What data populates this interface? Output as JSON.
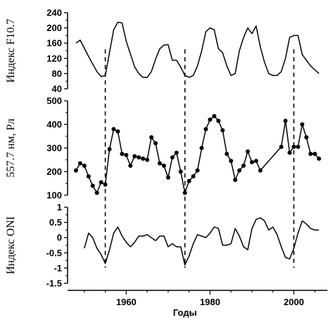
{
  "chart_data": [
    {
      "type": "line",
      "id": "f107",
      "ylabel": "Индекс F10.7",
      "ylim": [
        40,
        240
      ],
      "yticks": [
        40,
        80,
        120,
        160,
        200,
        240
      ],
      "series": [
        {
          "x": [
            1948,
            1949,
            1951,
            1953,
            1954,
            1955,
            1956,
            1957,
            1958,
            1959,
            1960,
            1962,
            1963,
            1964,
            1965,
            1966,
            1967,
            1968,
            1969,
            1970,
            1971,
            1972,
            1973,
            1974,
            1975,
            1976,
            1977,
            1978,
            1979,
            1980,
            1981,
            1982,
            1983,
            1984,
            1985,
            1986,
            1987,
            1988,
            1989,
            1990,
            1991,
            1992,
            1993,
            1994,
            1995,
            1996,
            1997,
            1998,
            1999,
            2000,
            2001,
            2002,
            2003,
            2004,
            2005,
            2006
          ],
          "y": [
            160,
            168,
            125,
            85,
            72,
            75,
            135,
            195,
            215,
            213,
            165,
            98,
            80,
            70,
            70,
            85,
            118,
            145,
            155,
            156,
            115,
            115,
            97,
            75,
            70,
            75,
            100,
            140,
            190,
            200,
            195,
            145,
            135,
            100,
            75,
            80,
            140,
            175,
            200,
            185,
            205,
            150,
            110,
            80,
            75,
            75,
            85,
            120,
            175,
            180,
            180,
            130,
            115,
            100,
            90,
            80
          ]
        }
      ]
    },
    {
      "type": "line",
      "id": "emission",
      "ylabel": "557.7 нм, Рл",
      "ylim": [
        100,
        500
      ],
      "yticks": [
        100,
        200,
        300,
        400,
        500
      ],
      "markers": true,
      "series": [
        {
          "x": [
            1948,
            1949,
            1950,
            1951,
            1952,
            1953,
            1954,
            1955,
            1956,
            1957,
            1958,
            1959,
            1960,
            1961,
            1962,
            1963,
            1964,
            1965,
            1966,
            1967,
            1968,
            1969,
            1970,
            1971,
            1972,
            1973,
            1974,
            1975,
            1976,
            1977,
            1978,
            1979,
            1980,
            1981,
            1982,
            1983,
            1984,
            1985,
            1986,
            1987,
            1988,
            1989,
            1990,
            1991,
            1992,
            1997,
            1998,
            1999,
            2000,
            2001,
            2002,
            2003,
            2004,
            2005,
            2006
          ],
          "y": [
            205,
            235,
            225,
            180,
            140,
            110,
            155,
            145,
            295,
            380,
            370,
            275,
            270,
            225,
            265,
            260,
            255,
            250,
            345,
            320,
            235,
            225,
            175,
            260,
            280,
            200,
            110,
            160,
            180,
            205,
            300,
            380,
            420,
            435,
            415,
            375,
            275,
            245,
            165,
            205,
            225,
            285,
            240,
            245,
            205,
            305,
            415,
            280,
            305,
            305,
            400,
            345,
            275,
            275,
            255
          ]
        }
      ]
    },
    {
      "type": "line",
      "id": "oni",
      "ylabel": "Индекс ONI",
      "xlabel": "Годы",
      "ylim": [
        -1.5,
        1
      ],
      "yticks": [
        1,
        0.5,
        0,
        -0.5,
        -1,
        -1.5
      ],
      "ytick_labels": [
        "1",
        "0.5",
        "0",
        "-0.5",
        "-1",
        "-1.5"
      ],
      "xticks": [
        1960,
        1980,
        2000
      ],
      "xtick_labels": [
        "1960",
        "1980",
        "2000"
      ],
      "xlim": [
        1946,
        2008
      ],
      "series": [
        {
          "x": [
            1950,
            1951,
            1952,
            1953,
            1954,
            1955,
            1956,
            1957,
            1958,
            1959,
            1960,
            1961,
            1962,
            1963,
            1964,
            1965,
            1966,
            1967,
            1968,
            1969,
            1970,
            1971,
            1972,
            1973,
            1974,
            1975,
            1976,
            1977,
            1978,
            1979,
            1980,
            1981,
            1982,
            1983,
            1984,
            1985,
            1986,
            1987,
            1988,
            1989,
            1990,
            1991,
            1992,
            1993,
            1994,
            1995,
            1996,
            1997,
            1998,
            1999,
            2000,
            2001,
            2002,
            2003,
            2004,
            2005,
            2006
          ],
          "y": [
            -0.35,
            0.15,
            0.0,
            -0.35,
            -0.55,
            -0.85,
            -0.4,
            0.15,
            0.35,
            0.05,
            -0.15,
            -0.3,
            -0.15,
            0.05,
            0.05,
            0.1,
            0.0,
            -0.1,
            0.05,
            0.05,
            -0.3,
            -0.2,
            -0.3,
            -0.3,
            -0.9,
            -0.6,
            -0.2,
            0.1,
            0.05,
            0.0,
            0.15,
            0.35,
            0.3,
            -0.25,
            -0.25,
            -0.2,
            0.3,
            0.05,
            -0.3,
            -0.4,
            0.3,
            0.6,
            0.65,
            0.55,
            0.25,
            0.35,
            0.1,
            -0.3,
            -0.65,
            -0.7,
            -0.35,
            0.15,
            0.55,
            0.45,
            0.3,
            0.25,
            0.25
          ]
        }
      ]
    }
  ],
  "markers_vertical": [
    1955,
    1974,
    2000
  ]
}
